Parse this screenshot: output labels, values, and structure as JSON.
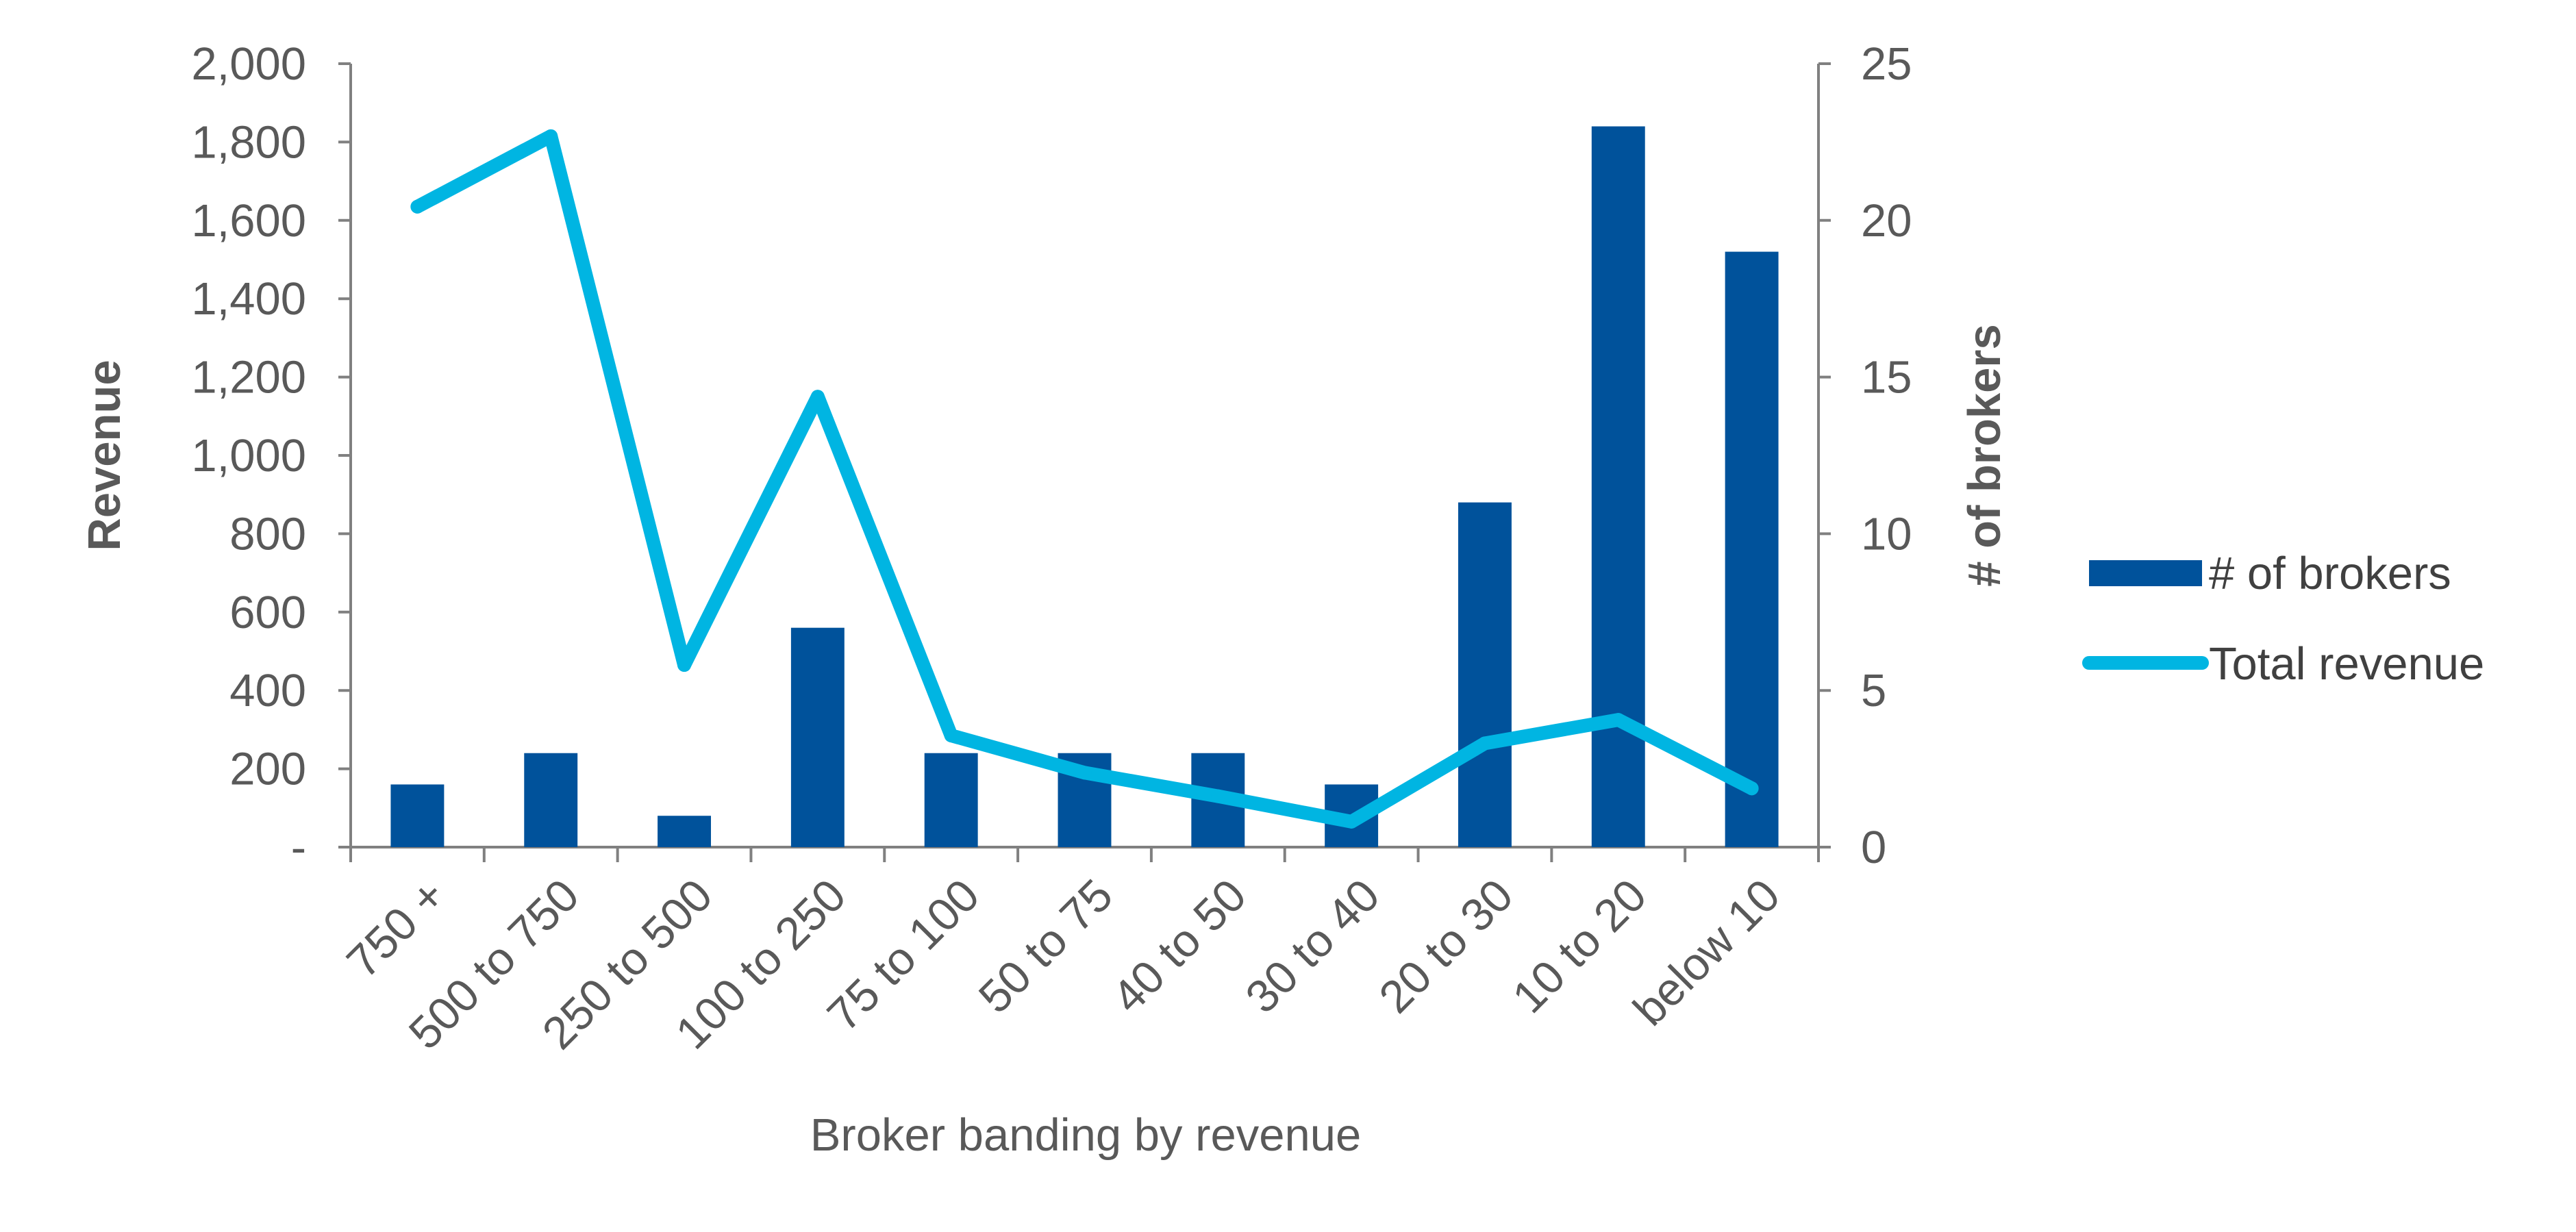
{
  "chart_data": {
    "type": "bar",
    "categories": [
      "750 +",
      "500 to 750",
      "250 to 500",
      "100 to 250",
      "75 to 100",
      "50 to 75",
      "40 to 50",
      "30 to 40",
      "20 to 30",
      "10 to 20",
      "below 10"
    ],
    "series": [
      {
        "name": "# of brokers",
        "type": "bar",
        "axis": "right",
        "color": "#00529B",
        "values": [
          2,
          3,
          1,
          7,
          3,
          3,
          3,
          2,
          11,
          23,
          19
        ]
      },
      {
        "name": "Total revenue",
        "type": "line",
        "axis": "left",
        "color": "#00B5E2",
        "values": [
          1635,
          1815,
          465,
          1150,
          285,
          190,
          130,
          65,
          265,
          325,
          150
        ]
      }
    ],
    "xlabel": "Broker banding by revenue",
    "ylabel": "Revenue",
    "y2label": "# of brokers",
    "ylim": [
      0,
      2000
    ],
    "y2lim": [
      0,
      25
    ],
    "yticks": [
      "-",
      "200",
      "400",
      "600",
      "800",
      "1,000",
      "1,200",
      "1,400",
      "1,600",
      "1,800",
      "2,000"
    ],
    "y2ticks": [
      "0",
      "5",
      "10",
      "15",
      "20",
      "25"
    ],
    "legend_position": "right",
    "grid": false
  }
}
